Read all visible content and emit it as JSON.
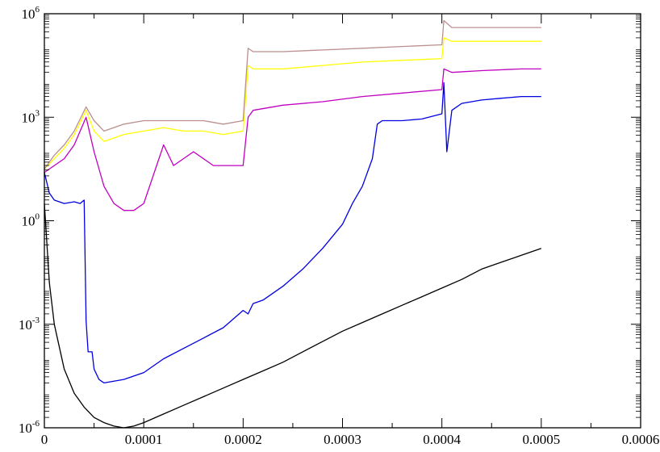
{
  "chart_data": {
    "type": "line",
    "title": "",
    "xlabel": "",
    "ylabel": "",
    "xlim": [
      0,
      0.0006
    ],
    "ylim_log10": [
      -6,
      6
    ],
    "yscale": "log",
    "grid": false,
    "x_ticks": [
      {
        "value": 0,
        "label": "0"
      },
      {
        "value": 0.0001,
        "label": "0.0001"
      },
      {
        "value": 0.0002,
        "label": "0.0002"
      },
      {
        "value": 0.0003,
        "label": "0.0003"
      },
      {
        "value": 0.0004,
        "label": "0.0004"
      },
      {
        "value": 0.0005,
        "label": "0.0005"
      },
      {
        "value": 0.0006,
        "label": "0.0006"
      }
    ],
    "y_ticks": [
      {
        "exp": -6,
        "base": "10",
        "sup": "-6"
      },
      {
        "exp": -3,
        "base": "10",
        "sup": "-3"
      },
      {
        "exp": 0,
        "base": "10",
        "sup": "0"
      },
      {
        "exp": 3,
        "base": "10",
        "sup": "3"
      },
      {
        "exp": 6,
        "base": "10",
        "sup": "6"
      }
    ],
    "series": [
      {
        "color": "#000000",
        "x": [
          0,
          5e-06,
          1e-05,
          2e-05,
          3e-05,
          4e-05,
          5e-05,
          6e-05,
          7e-05,
          8e-05,
          9e-05,
          0.0001,
          0.00012,
          0.00014,
          0.00016,
          0.00018,
          0.0002,
          0.00022,
          0.00024,
          0.00026,
          0.00028,
          0.0003,
          0.00032,
          0.00034,
          0.00036,
          0.00038,
          0.0004,
          0.00042,
          0.00044,
          0.00046,
          0.00048,
          0.0005
        ],
        "y_log10": [
          0.5,
          -1.8,
          -3.0,
          -4.3,
          -5.0,
          -5.4,
          -5.7,
          -5.85,
          -5.95,
          -6.0,
          -5.95,
          -5.85,
          -5.6,
          -5.35,
          -5.1,
          -4.85,
          -4.6,
          -4.35,
          -4.1,
          -3.8,
          -3.5,
          -3.2,
          -2.95,
          -2.7,
          -2.45,
          -2.2,
          -1.95,
          -1.7,
          -1.4,
          -1.2,
          -1.0,
          -0.8
        ]
      },
      {
        "color": "#0000e0",
        "x": [
          0,
          5e-06,
          1e-05,
          2e-05,
          3e-05,
          3.6e-05,
          4e-05,
          4.2e-05,
          4.4e-05,
          4.8e-05,
          5e-05,
          5.5e-05,
          6e-05,
          8e-05,
          0.0001,
          0.00012,
          0.00014,
          0.00016,
          0.00018,
          0.0002,
          0.000205,
          0.00021,
          0.00022,
          0.00024,
          0.00026,
          0.00028,
          0.0003,
          0.00031,
          0.00032,
          0.00033,
          0.000335,
          0.00034,
          0.00036,
          0.00038,
          0.0004,
          0.000402,
          0.000405,
          0.00041,
          0.00042,
          0.00044,
          0.00046,
          0.00048,
          0.0005
        ],
        "y_log10": [
          1.4,
          0.8,
          0.6,
          0.5,
          0.55,
          0.5,
          0.6,
          -2.9,
          -3.8,
          -3.8,
          -4.3,
          -4.6,
          -4.7,
          -4.6,
          -4.4,
          -4.0,
          -3.7,
          -3.4,
          -3.1,
          -2.6,
          -2.7,
          -2.4,
          -2.3,
          -1.9,
          -1.4,
          -0.8,
          -0.1,
          0.5,
          1.0,
          1.8,
          2.8,
          2.9,
          2.9,
          2.95,
          3.1,
          4.0,
          2.0,
          3.2,
          3.4,
          3.5,
          3.55,
          3.6,
          3.6
        ]
      },
      {
        "color": "#c000c0",
        "x": [
          0,
          1e-05,
          2e-05,
          3e-05,
          4.2e-05,
          5e-05,
          6e-05,
          7e-05,
          8e-05,
          9e-05,
          0.0001,
          0.00012,
          0.00013,
          0.00015,
          0.00017,
          0.0002,
          0.000205,
          0.00021,
          0.00024,
          0.00028,
          0.00032,
          0.00036,
          0.0004,
          0.000402,
          0.00041,
          0.00044,
          0.00048,
          0.0005
        ],
        "y_log10": [
          1.4,
          1.6,
          1.8,
          2.2,
          3.0,
          2.0,
          1.0,
          0.5,
          0.3,
          0.3,
          0.5,
          2.2,
          1.6,
          2.0,
          1.6,
          1.6,
          3.0,
          3.2,
          3.35,
          3.45,
          3.6,
          3.7,
          3.8,
          4.4,
          4.3,
          4.35,
          4.4,
          4.4
        ]
      },
      {
        "color": "#ffff00",
        "x": [
          0,
          1e-05,
          2e-05,
          3e-05,
          4.2e-05,
          5e-05,
          6e-05,
          8e-05,
          0.0001,
          0.00012,
          0.00014,
          0.00016,
          0.00018,
          0.0002,
          0.000205,
          0.00021,
          0.00024,
          0.00028,
          0.00032,
          0.00036,
          0.0004,
          0.000402,
          0.00041,
          0.00044,
          0.00048,
          0.0005
        ],
        "y_log10": [
          1.5,
          1.8,
          2.1,
          2.5,
          3.2,
          2.6,
          2.3,
          2.5,
          2.6,
          2.7,
          2.6,
          2.6,
          2.5,
          2.6,
          4.5,
          4.4,
          4.4,
          4.5,
          4.6,
          4.65,
          4.7,
          5.3,
          5.2,
          5.2,
          5.2,
          5.2
        ]
      },
      {
        "color": "#bc8f8f",
        "x": [
          0,
          1e-05,
          2e-05,
          3e-05,
          4.2e-05,
          5e-05,
          6e-05,
          8e-05,
          0.0001,
          0.00012,
          0.00014,
          0.00016,
          0.00018,
          0.0002,
          0.000205,
          0.00021,
          0.00024,
          0.00028,
          0.00032,
          0.00036,
          0.0004,
          0.000402,
          0.00041,
          0.00044,
          0.00048,
          0.0005
        ],
        "y_log10": [
          1.5,
          1.9,
          2.2,
          2.6,
          3.3,
          2.9,
          2.6,
          2.8,
          2.9,
          2.9,
          2.9,
          2.9,
          2.8,
          2.9,
          5.0,
          4.9,
          4.9,
          4.95,
          5.0,
          5.05,
          5.1,
          5.8,
          5.6,
          5.6,
          5.6,
          5.6
        ]
      }
    ]
  }
}
